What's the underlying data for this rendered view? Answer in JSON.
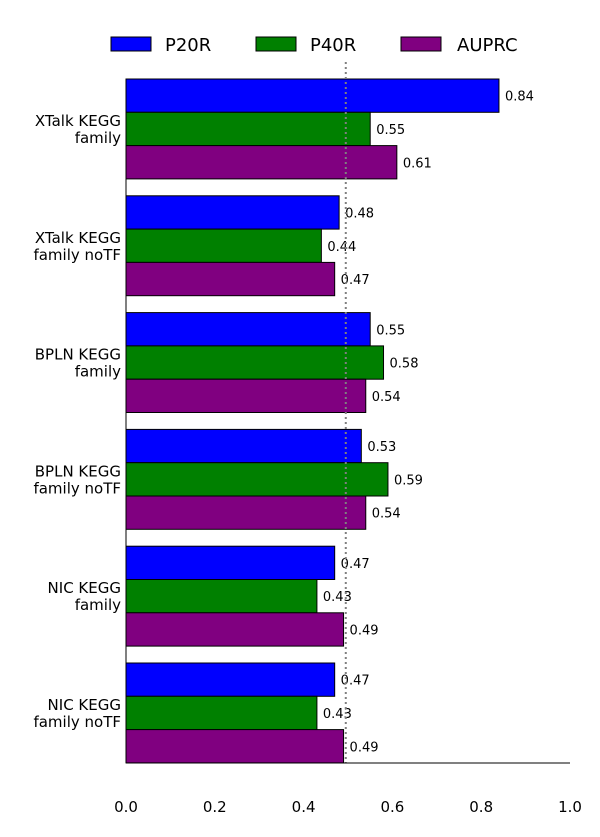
{
  "chart_data": {
    "type": "bar",
    "orientation": "horizontal",
    "categories": [
      [
        "XTalk KEGG",
        "family"
      ],
      [
        "XTalk KEGG",
        "family noTF"
      ],
      [
        "BPLN KEGG",
        "family"
      ],
      [
        "BPLN KEGG",
        "family noTF"
      ],
      [
        "NIC KEGG",
        "family"
      ],
      [
        "NIC KEGG",
        "family noTF"
      ]
    ],
    "series": [
      {
        "name": "P20R",
        "color": "#0000ff",
        "values": [
          0.84,
          0.48,
          0.55,
          0.53,
          0.47,
          0.47
        ]
      },
      {
        "name": "P40R",
        "color": "#008000",
        "values": [
          0.55,
          0.44,
          0.58,
          0.59,
          0.43,
          0.43
        ]
      },
      {
        "name": "AUPRC",
        "color": "#800080",
        "values": [
          0.61,
          0.47,
          0.54,
          0.54,
          0.49,
          0.49
        ]
      }
    ],
    "value_labels": [
      [
        "0.84",
        "0.55",
        "0.61"
      ],
      [
        "0.48",
        "0.44",
        "0.47"
      ],
      [
        "0.55",
        "0.58",
        "0.54"
      ],
      [
        "0.53",
        "0.59",
        "0.54"
      ],
      [
        "0.47",
        "0.43",
        "0.49"
      ],
      [
        "0.47",
        "0.43",
        "0.49"
      ]
    ],
    "xlim": [
      0.0,
      1.0
    ],
    "xticks": [
      "0.0",
      "0.2",
      "0.4",
      "0.6",
      "0.8",
      "1.0"
    ],
    "reference_line": {
      "x": 0.495,
      "style": "dotted",
      "color": "#808080"
    },
    "legend": {
      "placement": "top",
      "entries": [
        "P20R",
        "P40R",
        "AUPRC"
      ]
    },
    "grid": false,
    "title": "",
    "xlabel": "",
    "ylabel": ""
  }
}
